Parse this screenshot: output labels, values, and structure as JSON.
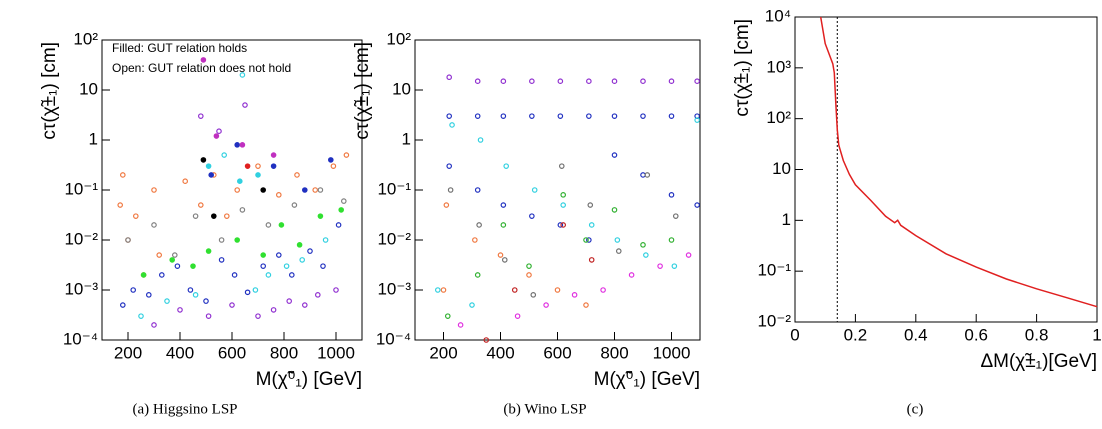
{
  "chart_data": [
    {
      "type": "scatter",
      "caption": "(a) Higgsino LSP",
      "xlabel": "M(χ̃⁰₁) [GeV]",
      "ylabel": "cτ(χ̃±₁) [cm]",
      "annotations": [
        "Filled: GUT relation holds",
        "Open: GUT relation does not hold"
      ],
      "xlim": [
        100,
        1100
      ],
      "xticks": [
        200,
        400,
        600,
        800,
        1000
      ],
      "ylog": true,
      "ylim": [
        0.0001,
        100
      ],
      "yticks": [
        {
          "value": 100,
          "label": "10²"
        },
        10,
        1,
        {
          "value": 0.1,
          "label": "10⁻¹"
        },
        {
          "value": 0.01,
          "label": "10⁻²"
        },
        {
          "value": 0.001,
          "label": "10⁻³"
        },
        {
          "value": 0.0001,
          "label": "10⁻⁴"
        }
      ],
      "series": [
        {
          "color": "#f07840",
          "marker": "open",
          "x": [
            170,
            180,
            200,
            230,
            260,
            300,
            320,
            420,
            480,
            530,
            580,
            620,
            700,
            780,
            850,
            920,
            990,
            1040
          ],
          "values": [
            0.05,
            0.2,
            0.01,
            0.03,
            0.002,
            0.1,
            0.005,
            0.15,
            0.05,
            0.2,
            0.03,
            0.1,
            0.3,
            0.08,
            0.2,
            0.1,
            0.3,
            0.5
          ]
        },
        {
          "color": "#2030c0",
          "marker": "open",
          "x": [
            180,
            220,
            280,
            330,
            390,
            440,
            500,
            560,
            610,
            660,
            720,
            780,
            830,
            900,
            950,
            1010
          ],
          "values": [
            0.0005,
            0.001,
            0.0008,
            0.002,
            0.003,
            0.001,
            0.0006,
            0.004,
            0.002,
            0.0009,
            0.003,
            0.005,
            0.002,
            0.006,
            0.003,
            0.02
          ]
        },
        {
          "color": "#9030d0",
          "marker": "open",
          "x": [
            300,
            400,
            480,
            510,
            550,
            600,
            650,
            700,
            760,
            820,
            880,
            930,
            1000
          ],
          "values": [
            0.0002,
            0.0004,
            3,
            0.0003,
            1.5,
            0.0005,
            5,
            0.0003,
            0.0004,
            0.0006,
            0.0005,
            0.0008,
            0.001
          ]
        },
        {
          "color": "#30d0e0",
          "marker": "open",
          "x": [
            250,
            350,
            460,
            570,
            640,
            690,
            740,
            810,
            870,
            960
          ],
          "values": [
            0.0003,
            0.0006,
            0.0008,
            0.5,
            20,
            0.001,
            0.002,
            0.003,
            0.004,
            0.01
          ]
        },
        {
          "color": "#808080",
          "marker": "open",
          "x": [
            200,
            300,
            380,
            460,
            560,
            640,
            740,
            840,
            940,
            1030
          ],
          "values": [
            0.01,
            0.02,
            0.005,
            0.03,
            0.01,
            0.04,
            0.02,
            0.05,
            0.1,
            0.06
          ]
        },
        {
          "color": "#30e030",
          "marker": "filled",
          "x": [
            260,
            370,
            450,
            510,
            620,
            720,
            790,
            860,
            940,
            1020
          ],
          "values": [
            0.002,
            0.004,
            0.003,
            0.006,
            0.01,
            0.005,
            0.02,
            0.008,
            0.03,
            0.04
          ]
        },
        {
          "color": "#2030c0",
          "marker": "filled",
          "x": [
            520,
            620,
            760,
            880,
            980
          ],
          "values": [
            0.2,
            0.8,
            0.3,
            0.1,
            0.4
          ]
        },
        {
          "color": "#000000",
          "marker": "filled",
          "x": [
            490,
            530,
            720
          ],
          "values": [
            0.4,
            0.03,
            0.1
          ]
        },
        {
          "color": "#30d0e0",
          "marker": "filled",
          "x": [
            510,
            630,
            700
          ],
          "values": [
            0.3,
            0.15,
            0.2
          ]
        },
        {
          "color": "#c030c0",
          "marker": "filled",
          "x": [
            490,
            540,
            640,
            760
          ],
          "values": [
            40,
            1.2,
            0.8,
            0.5
          ]
        },
        {
          "color": "#e02020",
          "marker": "filled",
          "x": [
            660
          ],
          "values": [
            0.3
          ]
        }
      ]
    },
    {
      "type": "scatter",
      "caption": "(b) Wino LSP",
      "xlabel": "M(χ̃⁰₁) [GeV]",
      "ylabel": "cτ(χ̃±₁) [cm]",
      "xlim": [
        100,
        1100
      ],
      "xticks": [
        200,
        400,
        600,
        800,
        1000
      ],
      "ylog": true,
      "ylim": [
        0.0001,
        100
      ],
      "yticks": [
        {
          "value": 100,
          "label": "10²"
        },
        10,
        1,
        {
          "value": 0.1,
          "label": "10⁻¹"
        },
        {
          "value": 0.01,
          "label": "10⁻²"
        },
        {
          "value": 0.001,
          "label": "10⁻³"
        },
        {
          "value": 0.0001,
          "label": "10⁻⁴"
        }
      ],
      "series": [
        {
          "color": "#9030d0",
          "marker": "open",
          "x": [
            220,
            320,
            410,
            510,
            610,
            710,
            800,
            900,
            1000,
            1090
          ],
          "values": [
            18,
            15,
            15,
            15,
            15,
            15,
            15,
            15,
            15,
            15
          ]
        },
        {
          "color": "#2030c0",
          "marker": "open",
          "x": [
            220,
            220,
            320,
            320,
            410,
            410,
            510,
            510,
            610,
            610,
            710,
            710,
            800,
            800,
            900,
            900,
            1000,
            1000,
            1090,
            1090
          ],
          "values": [
            3,
            0.3,
            3,
            0.1,
            3,
            0.05,
            3,
            0.03,
            3,
            0.02,
            3,
            0.01,
            3,
            0.5,
            3,
            0.2,
            3,
            0.08,
            3,
            0.05
          ]
        },
        {
          "color": "#30d0e0",
          "marker": "open",
          "x": [
            230,
            330,
            420,
            520,
            620,
            720,
            810,
            910,
            1010,
            1090,
            180,
            300
          ],
          "values": [
            2,
            1,
            0.3,
            0.1,
            0.05,
            0.02,
            0.01,
            0.005,
            0.003,
            2.5,
            0.001,
            0.0005
          ]
        },
        {
          "color": "#f07840",
          "marker": "open",
          "x": [
            200,
            210,
            310,
            400,
            500,
            600,
            700
          ],
          "values": [
            0.001,
            0.05,
            0.01,
            0.005,
            0.002,
            0.001,
            0.0005
          ]
        },
        {
          "color": "#30b030",
          "marker": "open",
          "x": [
            215,
            320,
            410,
            500,
            620,
            700,
            800,
            900,
            1000
          ],
          "values": [
            0.0003,
            0.002,
            0.02,
            0.003,
            0.08,
            0.01,
            0.04,
            0.008,
            0.01
          ]
        },
        {
          "color": "#707070",
          "marker": "open",
          "x": [
            225,
            325,
            415,
            515,
            615,
            715,
            815,
            915,
            1015
          ],
          "values": [
            0.1,
            0.02,
            0.004,
            0.0008,
            0.3,
            0.05,
            0.006,
            0.2,
            0.03
          ]
        },
        {
          "color": "#e030e0",
          "marker": "open",
          "x": [
            260,
            460,
            560,
            660,
            760,
            860,
            960,
            1060
          ],
          "values": [
            0.0002,
            0.0003,
            0.0005,
            0.0008,
            0.001,
            0.002,
            0.003,
            0.005
          ]
        },
        {
          "color": "#c02020",
          "marker": "open",
          "x": [
            350,
            450,
            620,
            720
          ],
          "values": [
            0.0001,
            0.001,
            0.02,
            0.004
          ]
        }
      ]
    },
    {
      "type": "line",
      "caption": "(c)",
      "xlabel": "ΔM(χ̃±₁)[GeV]",
      "ylabel": "cτ(χ̃±₁) [cm]",
      "xlim": [
        0,
        1
      ],
      "xticks": [
        0,
        0.2,
        0.4,
        0.6,
        0.8,
        1
      ],
      "ylog": true,
      "ylim": [
        0.01,
        10000
      ],
      "yticks": [
        {
          "value": 10000,
          "label": "10⁴"
        },
        {
          "value": 1000,
          "label": "10³"
        },
        {
          "value": 100,
          "label": "10²"
        },
        10,
        1,
        {
          "value": 0.1,
          "label": "10⁻¹"
        },
        {
          "value": 0.01,
          "label": "10⁻²"
        }
      ],
      "vline": 0.14,
      "series": [
        {
          "color": "#e02020",
          "x": [
            0.085,
            0.1,
            0.125,
            0.13,
            0.135,
            0.14,
            0.145,
            0.16,
            0.18,
            0.2,
            0.25,
            0.3,
            0.33,
            0.34,
            0.35,
            0.4,
            0.5,
            0.6,
            0.7,
            0.8,
            0.9,
            1.0
          ],
          "values": [
            10000,
            3000,
            1200,
            800,
            200,
            60,
            30,
            15,
            8,
            5,
            2.5,
            1.2,
            0.9,
            1.0,
            0.8,
            0.5,
            0.22,
            0.12,
            0.07,
            0.045,
            0.03,
            0.02
          ]
        }
      ]
    }
  ]
}
